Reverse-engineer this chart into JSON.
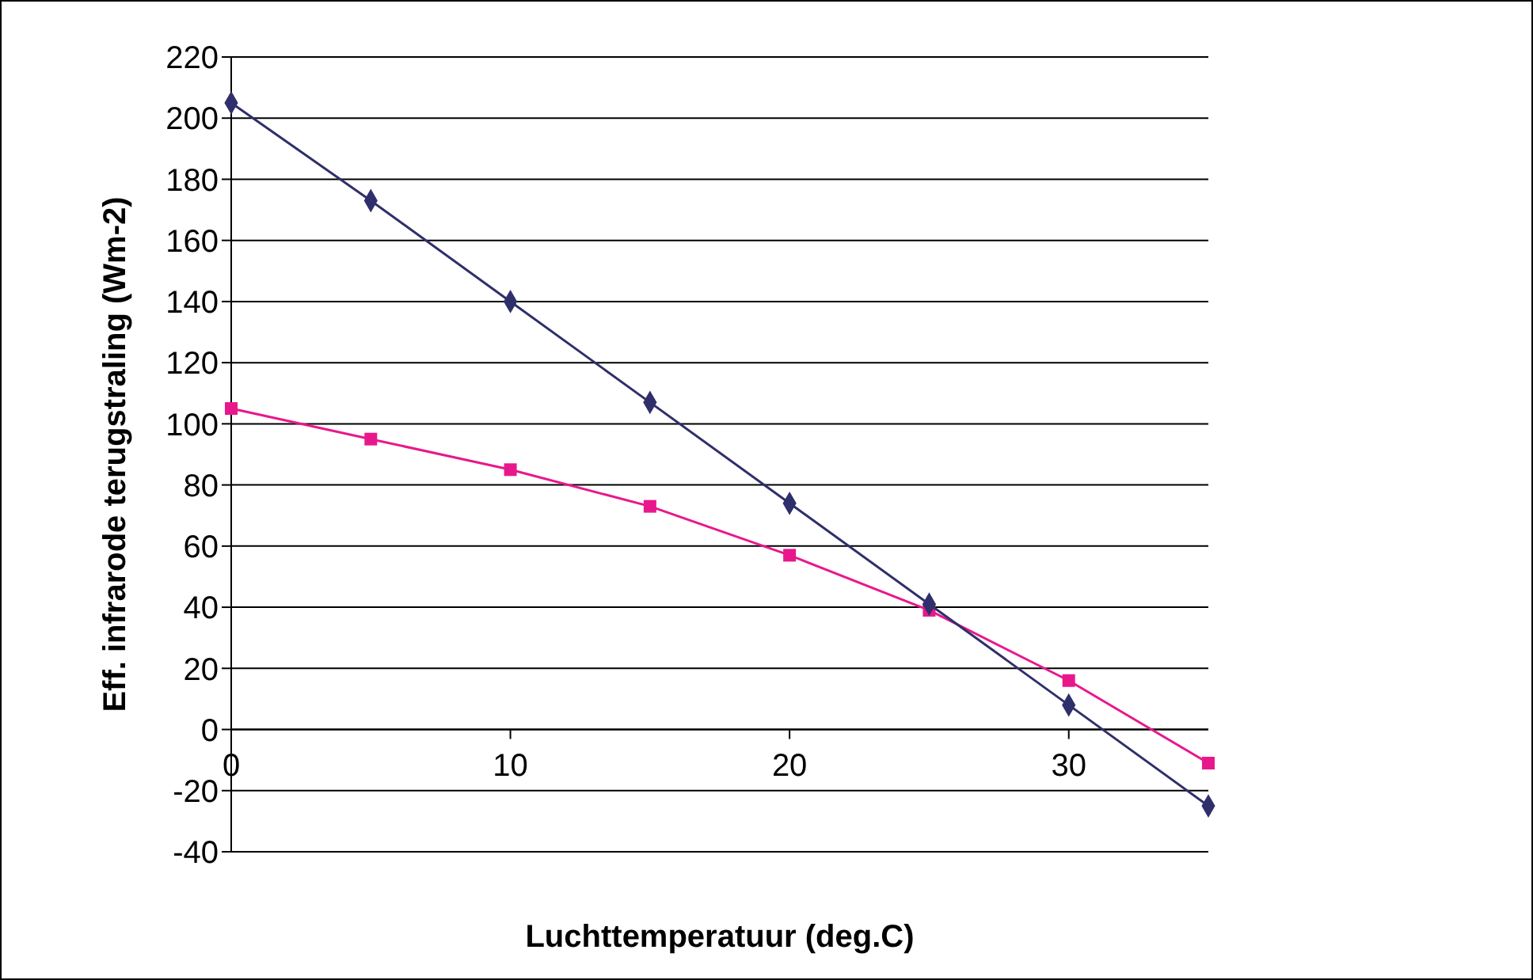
{
  "chart_data": {
    "type": "line",
    "xlabel": "Luchttemperatuur (deg.C)",
    "ylabel": "Eff. infrarode terugstraling (Wm-2)",
    "x": [
      0,
      5,
      10,
      15,
      20,
      25,
      30,
      35
    ],
    "series": [
      {
        "color": "#2f2f6b",
        "marker": "diamond",
        "values": [
          205,
          173,
          140,
          107,
          74,
          41,
          8,
          -25
        ]
      },
      {
        "color": "#e8188c",
        "marker": "square",
        "values": [
          105,
          95,
          85,
          73,
          57,
          39,
          16,
          -11
        ]
      }
    ],
    "xlim": [
      0,
      35
    ],
    "xticks": [
      0,
      10,
      20,
      30
    ],
    "ylim": [
      -40,
      220
    ],
    "yticks": [
      -40,
      -20,
      0,
      20,
      40,
      60,
      80,
      100,
      120,
      140,
      160,
      180,
      200,
      220
    ],
    "grid": "y",
    "legend": false,
    "line_style": "solid"
  }
}
